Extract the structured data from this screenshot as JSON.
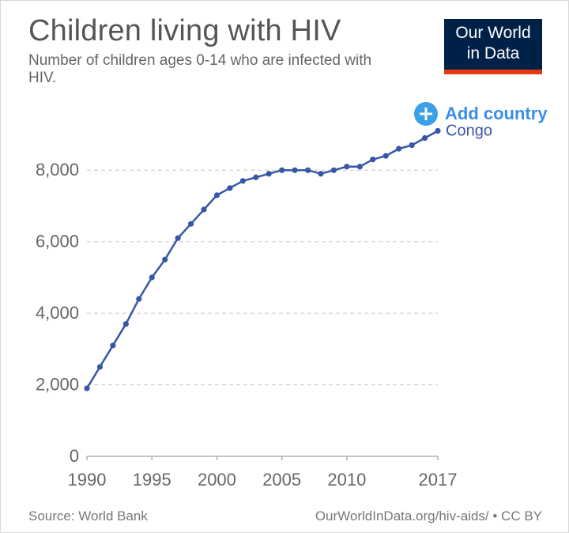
{
  "header": {
    "title": "Children living with HIV",
    "subtitle": "Number of children ages 0-14 who are infected with HIV."
  },
  "logo": {
    "line1": "Our World",
    "line2": "in Data"
  },
  "controls": {
    "add_country_label": "Add country"
  },
  "footer": {
    "source": "Source: World Bank",
    "link": "OurWorldInData.org/hiv-aids/ • CC BY"
  },
  "colors": {
    "series": "#3757a6",
    "grid": "#d0d0d0",
    "axis": "#b0b0b0",
    "logo_bg": "#002147",
    "logo_accent": "#e63912",
    "add_button": "#3aa0e8"
  },
  "icons": {
    "add_country": "plus-circle-icon"
  },
  "chart_data": {
    "type": "line",
    "title": "Children living with HIV",
    "xlabel": "",
    "ylabel": "",
    "xlim": [
      1990,
      2017
    ],
    "ylim": [
      0,
      9000
    ],
    "x_ticks": [
      "1990",
      "1995",
      "2000",
      "2005",
      "2010",
      "2017"
    ],
    "y_ticks": [
      "0",
      "2,000",
      "4,000",
      "6,000",
      "8,000"
    ],
    "grid": true,
    "series": [
      {
        "name": "Congo",
        "x": [
          1990,
          1991,
          1992,
          1993,
          1994,
          1995,
          1996,
          1997,
          1998,
          1999,
          2000,
          2001,
          2002,
          2003,
          2004,
          2005,
          2006,
          2007,
          2008,
          2009,
          2010,
          2011,
          2012,
          2013,
          2014,
          2015,
          2016,
          2017
        ],
        "values": [
          1900,
          2500,
          3100,
          3700,
          4400,
          5000,
          5500,
          6100,
          6500,
          6900,
          7300,
          7500,
          7700,
          7800,
          7900,
          8000,
          8000,
          8000,
          7900,
          8000,
          8100,
          8100,
          8300,
          8400,
          8600,
          8700,
          8900,
          9100
        ]
      }
    ]
  }
}
